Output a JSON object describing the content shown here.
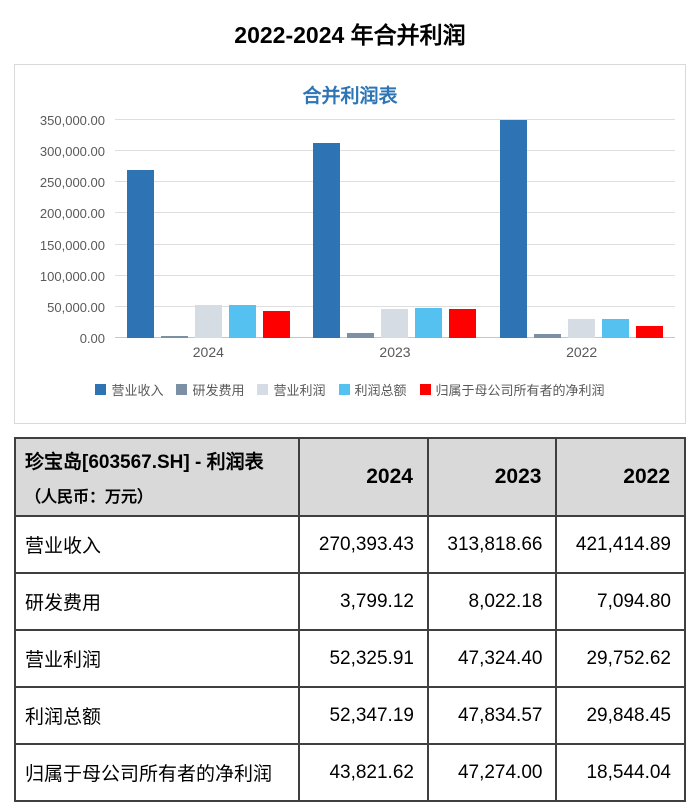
{
  "page_title": "2022-2024 年合并利润",
  "colors": {
    "chart_title": "#2E75B6",
    "axis_text": "#595959",
    "gridline": "#DEDEDE",
    "table_header_bg": "#D9D9D9",
    "table_border": "#3F3F3F"
  },
  "chart_data": {
    "type": "bar",
    "title": "合并利润表",
    "categories": [
      "2024",
      "2023",
      "2022"
    ],
    "series": [
      {
        "name": "营业收入",
        "color": "#2E74B5",
        "values": [
          270393.43,
          313818.66,
          421414.89
        ]
      },
      {
        "name": "研发费用",
        "color": "#7B8FA5",
        "values": [
          3799.12,
          8022.18,
          7094.8
        ]
      },
      {
        "name": "营业利润",
        "color": "#D6DCE4",
        "values": [
          52325.91,
          47324.4,
          29752.62
        ]
      },
      {
        "name": "利润总额",
        "color": "#54C1F0",
        "values": [
          52347.19,
          47834.57,
          29848.45
        ]
      },
      {
        "name": "归属于母公司所有者的净利润",
        "color": "#FF0000",
        "values": [
          43821.62,
          47274.0,
          18544.04
        ]
      }
    ],
    "ylim": [
      0,
      350000
    ],
    "ytick_step": 50000,
    "ytick_labels": [
      "350,000.00",
      "300,000.00",
      "250,000.00",
      "200,000.00",
      "150,000.00",
      "100,000.00",
      "50,000.00",
      "0.00"
    ],
    "grid": true,
    "legend_position": "bottom",
    "note": "2022 营业收入 (421,414.89) exceeds the visible axis and is clipped at the 350,000 gridline"
  },
  "table": {
    "header": {
      "title": "珍宝岛[603567.SH] - 利润表",
      "subtitle": "（人民币：万元）",
      "columns": [
        "2024",
        "2023",
        "2022"
      ]
    },
    "rows": [
      {
        "label": "营业收入",
        "values": [
          "270,393.43",
          "313,818.66",
          "421,414.89"
        ]
      },
      {
        "label": "研发费用",
        "values": [
          "3,799.12",
          "8,022.18",
          "7,094.80"
        ]
      },
      {
        "label": "营业利润",
        "values": [
          "52,325.91",
          "47,324.40",
          "29,752.62"
        ]
      },
      {
        "label": "利润总额",
        "values": [
          "52,347.19",
          "47,834.57",
          "29,848.45"
        ]
      },
      {
        "label": "归属于母公司所有者的净利润",
        "values": [
          "43,821.62",
          "47,274.00",
          "18,544.04"
        ]
      }
    ]
  }
}
